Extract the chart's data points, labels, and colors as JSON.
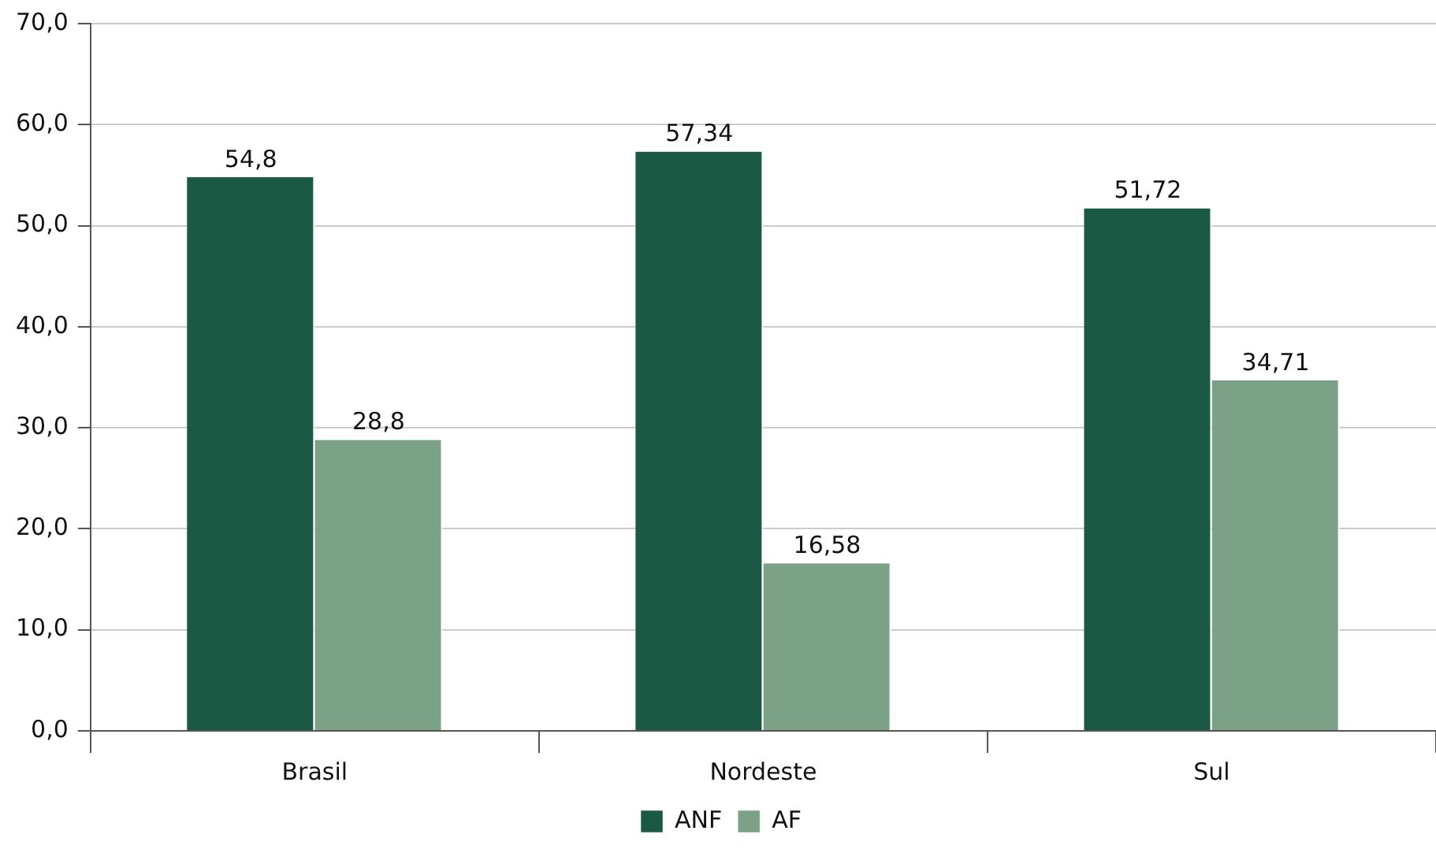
{
  "chart_data": {
    "type": "bar",
    "categories": [
      "Brasil",
      "Nordeste",
      "Sul"
    ],
    "series": [
      {
        "name": "ANF",
        "color": "#1a5a44",
        "values": [
          54.8,
          57.34,
          51.72
        ],
        "value_labels": [
          "54,8",
          "57,34",
          "51,72"
        ]
      },
      {
        "name": "AF",
        "color": "#7ba186",
        "values": [
          28.8,
          16.58,
          34.71
        ],
        "value_labels": [
          "28,8",
          "16,58",
          "34,71"
        ]
      }
    ],
    "ylim": [
      0,
      70
    ],
    "yticks": [
      {
        "value": 0,
        "label": "0,0"
      },
      {
        "value": 10,
        "label": "10,0"
      },
      {
        "value": 20,
        "label": "20,0"
      },
      {
        "value": 30,
        "label": "30,0"
      },
      {
        "value": 40,
        "label": "40,0"
      },
      {
        "value": 50,
        "label": "50,0"
      },
      {
        "value": 60,
        "label": "60,0"
      },
      {
        "value": 70,
        "label": "70,0"
      }
    ],
    "grid": "y",
    "legend": "bottom"
  }
}
